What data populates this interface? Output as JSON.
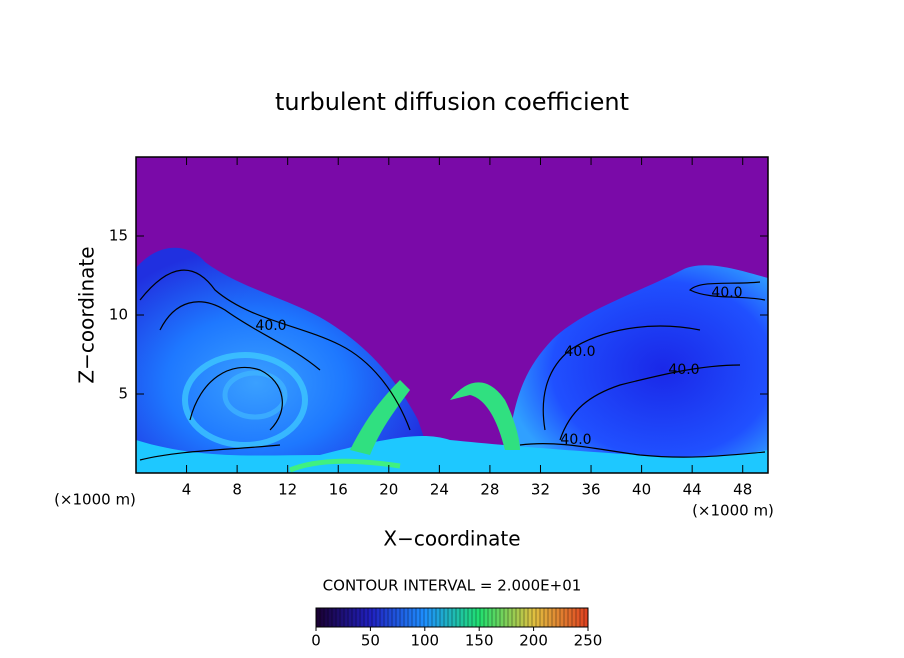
{
  "chart_data": {
    "type": "contour",
    "title": "turbulent diffusion coefficient",
    "xlabel": "X−coordinate",
    "ylabel": "Z−coordinate",
    "x_unit": "(×1000 m)",
    "y_unit": "(×1000 m)",
    "xlim": [
      0,
      50
    ],
    "ylim": [
      0,
      20
    ],
    "xticks": [
      4,
      8,
      12,
      16,
      20,
      24,
      28,
      32,
      36,
      40,
      44,
      48
    ],
    "yticks": [
      5,
      10,
      15
    ],
    "contour_interval_label": "CONTOUR INTERVAL = 2.000E+01",
    "contour_labels": [
      "40.0",
      "40.0",
      "40.0",
      "40.0",
      "40.0"
    ],
    "colorbar": {
      "lim": [
        0,
        250
      ],
      "ticks": [
        0,
        50,
        100,
        150,
        200,
        250
      ],
      "colors": [
        "#1a0030",
        "#2020c0",
        "#1e90ff",
        "#20e070",
        "#e0c040",
        "#e04020"
      ]
    }
  }
}
